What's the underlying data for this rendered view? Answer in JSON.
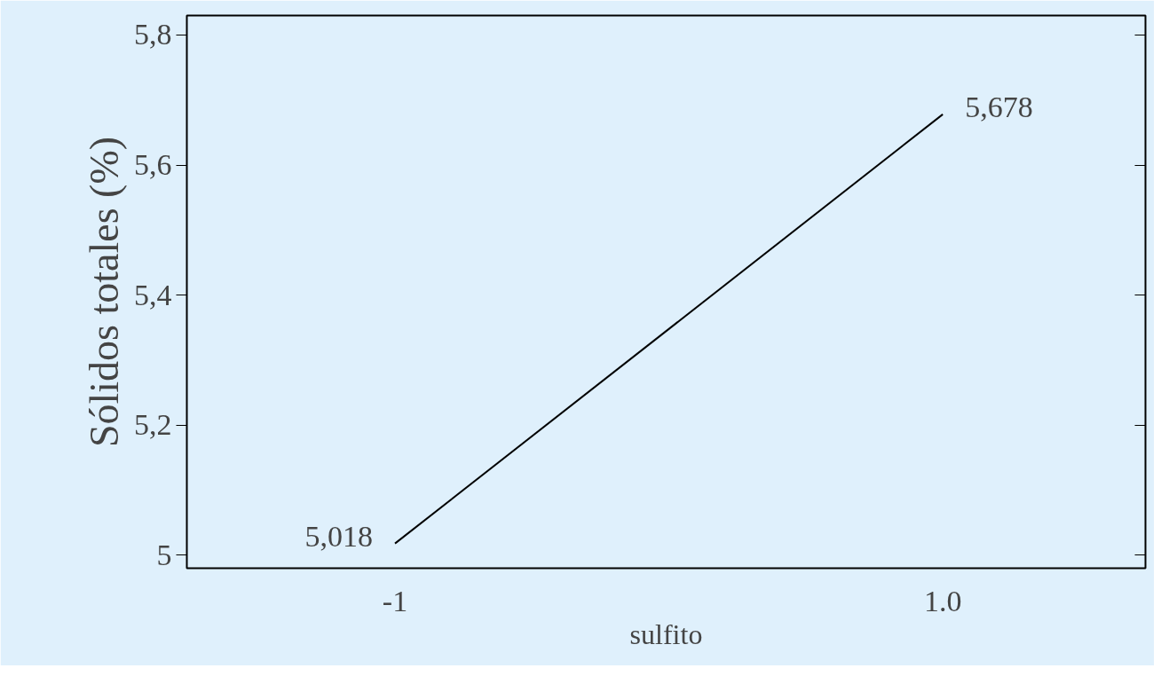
{
  "chart_data": {
    "type": "line",
    "xlabel": "sulfito",
    "ylabel": "Sólidos totales (%)",
    "x": [
      -1,
      1
    ],
    "series": [
      {
        "color": "#000000",
        "values": [
          5.018,
          5.678
        ]
      }
    ],
    "xlim": [
      -1.76,
      1.74
    ],
    "xticks": [
      {
        "value": -1,
        "label": "-1"
      },
      {
        "value": 1,
        "label": "1.0"
      }
    ],
    "ylim": [
      4.98,
      5.83
    ],
    "yticks": [
      {
        "value": 5,
        "label": "5"
      },
      {
        "value": 5.2,
        "label": "5,2"
      },
      {
        "value": 5.4,
        "label": "5,4"
      },
      {
        "value": 5.6,
        "label": "5,6"
      },
      {
        "value": 5.8,
        "label": "5,8"
      }
    ],
    "grid": false,
    "annotations": [
      {
        "text": "5,018",
        "x": -1,
        "y": 5.018
      },
      {
        "text": "5,678",
        "x": 1,
        "y": 5.678
      }
    ]
  }
}
